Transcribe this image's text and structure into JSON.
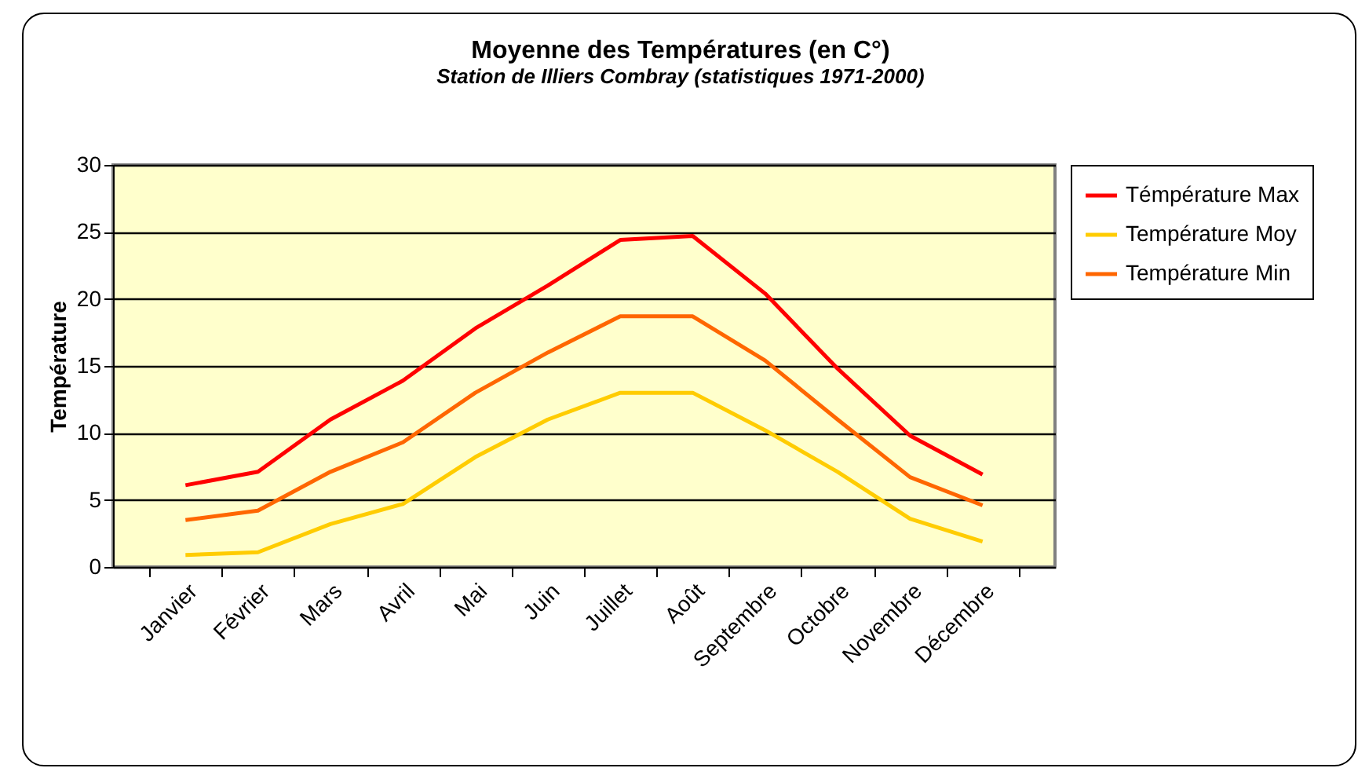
{
  "chart_data": {
    "type": "line",
    "title": "Moyenne des Températures (en C°)",
    "subtitle": "Station de Illiers Combray (statistiques 1971-2000)",
    "ylabel": "Température",
    "categories": [
      "Janvier",
      "Février",
      "Mars",
      "Avril",
      "Mai",
      "Juin",
      "Juillet",
      "Août",
      "Septembre",
      "Octobre",
      "Novembre",
      "Décembre"
    ],
    "series": [
      {
        "name": "Témpérature Max",
        "color": "#ff0000",
        "values": [
          6.1,
          7.1,
          11,
          13.9,
          17.8,
          21,
          24.4,
          24.7,
          20.4,
          14.8,
          9.8,
          6.9
        ]
      },
      {
        "name": "Température Moy",
        "color": "#ffcc00",
        "values": [
          0.9,
          1.1,
          3.2,
          4.7,
          8.2,
          11,
          13,
          13,
          10.2,
          7.1,
          3.6,
          1.9
        ]
      },
      {
        "name": "Température Min",
        "color": "#ff6600",
        "values": [
          3.5,
          4.2,
          7.1,
          9.3,
          13,
          16,
          18.7,
          18.7,
          15.4,
          11,
          6.7,
          4.6
        ]
      }
    ],
    "ylim": [
      0,
      30
    ],
    "yticks": [
      0,
      5,
      10,
      15,
      20,
      25,
      30
    ],
    "grid": "y",
    "legend": "right",
    "marker": "none",
    "line_style": "solid"
  }
}
